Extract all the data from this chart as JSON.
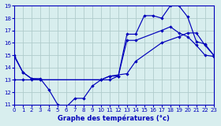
{
  "xlabel": "Graphe des températures (°c)",
  "bg_color": "#d8eeee",
  "grid_color": "#b0cccc",
  "line_color": "#0000bb",
  "ylim": [
    11,
    19
  ],
  "xlim": [
    0,
    23
  ],
  "yticks": [
    11,
    12,
    13,
    14,
    15,
    16,
    17,
    18,
    19
  ],
  "xticks": [
    0,
    1,
    2,
    3,
    4,
    5,
    6,
    7,
    8,
    9,
    10,
    11,
    12,
    13,
    14,
    15,
    16,
    17,
    18,
    19,
    20,
    21,
    22,
    23
  ],
  "series1_x": [
    0,
    1,
    2,
    3,
    4,
    5,
    6,
    7,
    8,
    9,
    10,
    11,
    12,
    13,
    14,
    15,
    16,
    17,
    18,
    19,
    20,
    21,
    22,
    23
  ],
  "series1_y": [
    14.9,
    13.6,
    13.1,
    13.1,
    12.2,
    11.0,
    10.8,
    11.5,
    11.5,
    12.5,
    13.0,
    13.0,
    13.3,
    16.7,
    16.7,
    18.2,
    18.2,
    18.0,
    19.0,
    19.0,
    18.1,
    16.1,
    15.9,
    15.0
  ],
  "series2_x": [
    0,
    1,
    2,
    3,
    10,
    11,
    12,
    13,
    14,
    17,
    18,
    19,
    20,
    21,
    22,
    23
  ],
  "series2_y": [
    15.0,
    13.6,
    13.1,
    13.0,
    13.0,
    13.3,
    13.3,
    16.2,
    16.2,
    17.0,
    17.3,
    16.8,
    16.5,
    15.8,
    15.0,
    14.9
  ],
  "series3_x": [
    0,
    1,
    2,
    3,
    10,
    11,
    13,
    14,
    17,
    19,
    20,
    21,
    22,
    23
  ],
  "series3_y": [
    13.0,
    13.0,
    13.0,
    13.0,
    13.0,
    13.3,
    13.5,
    14.5,
    16.0,
    16.5,
    16.8,
    16.8,
    15.8,
    15.0
  ]
}
